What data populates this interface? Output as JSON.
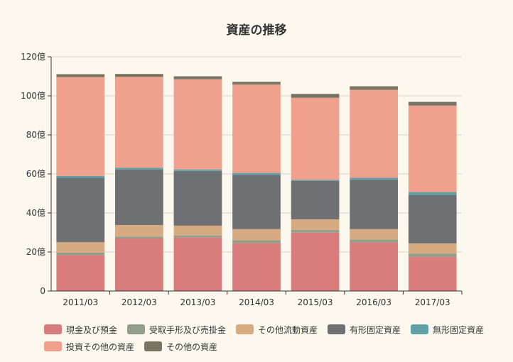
{
  "chart_data": {
    "type": "bar",
    "stacked": true,
    "title": "資産の推移",
    "categories": [
      "2011/03",
      "2012/03",
      "2013/03",
      "2014/03",
      "2015/03",
      "2016/03",
      "2017/03"
    ],
    "y_tick_labels": [
      "0",
      "20億",
      "40億",
      "60億",
      "80億",
      "100億",
      "120億"
    ],
    "ylim": [
      0,
      120
    ],
    "grid": true,
    "legend_position": "bottom",
    "series": [
      {
        "name": "現金及び預金",
        "color": "#d87c7c",
        "values": [
          18.5,
          26.9,
          27.4,
          24.6,
          29.9,
          24.9,
          17.5
        ]
      },
      {
        "name": "受取手形及び売掛金",
        "color": "#919e8b",
        "values": [
          1.2,
          1.0,
          1.1,
          1.5,
          1.4,
          1.5,
          1.6
        ]
      },
      {
        "name": "その他流動資産",
        "color": "#d7ab82",
        "values": [
          5.3,
          5.9,
          5.0,
          5.6,
          5.4,
          5.3,
          5.3
        ]
      },
      {
        "name": "有形固定資産",
        "color": "#6e7074",
        "values": [
          33.0,
          28.5,
          28.0,
          27.8,
          19.7,
          25.3,
          24.7
        ]
      },
      {
        "name": "無形固定資産",
        "color": "#61a0a8",
        "values": [
          1.0,
          0.9,
          0.8,
          1.0,
          0.6,
          1.0,
          1.6
        ]
      },
      {
        "name": "投資その他の資産",
        "color": "#efa18d",
        "values": [
          50.6,
          46.5,
          46.2,
          45.3,
          42.0,
          45.1,
          44.3
        ]
      },
      {
        "name": "その他の資産",
        "color": "#787464",
        "values": [
          1.5,
          1.5,
          1.5,
          1.4,
          2.0,
          1.8,
          1.9
        ]
      }
    ]
  }
}
